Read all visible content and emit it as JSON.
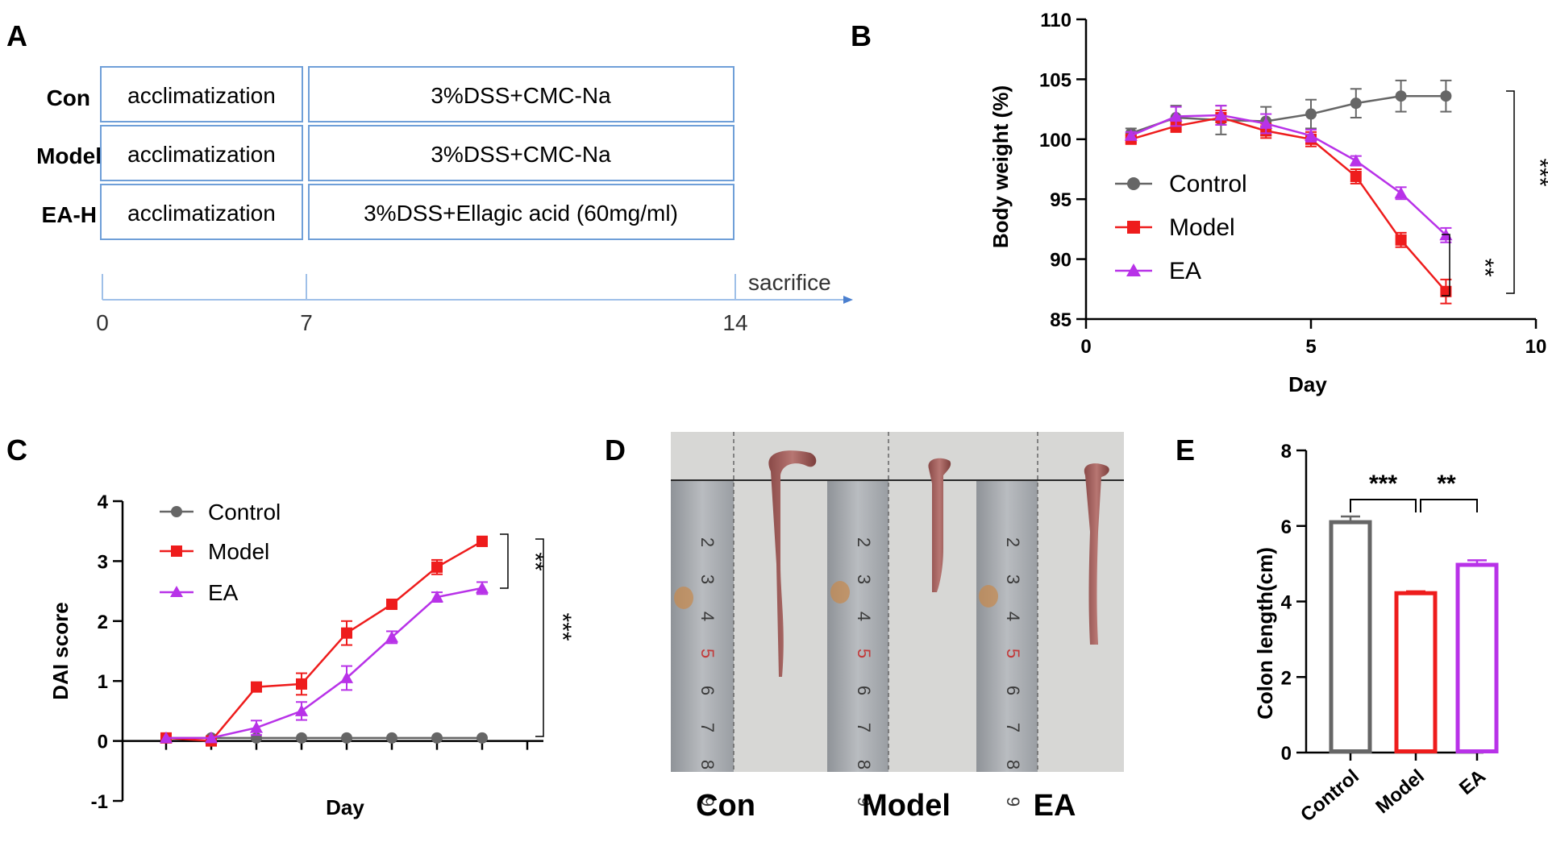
{
  "panels": {
    "A": {
      "letter": "A",
      "groups": [
        {
          "label": "Con",
          "phase1": "acclimatization",
          "phase2": "3%DSS+CMC-Na"
        },
        {
          "label": "Model",
          "phase1": "acclimatization",
          "phase2": "3%DSS+CMC-Na"
        },
        {
          "label": "EA-H",
          "phase1": "acclimatization",
          "phase2": "3%DSS+Ellagic acid (60mg/ml)"
        }
      ],
      "timeline": {
        "ticks": [
          "0",
          "7",
          "14"
        ],
        "end_label": "sacrifice"
      },
      "colors": {
        "box_border": "#6f9fd8",
        "axis": "#9fc0e8"
      }
    },
    "D": {
      "letter": "D",
      "labels": [
        "Con",
        "Model",
        "EA"
      ],
      "ruler_numbers": [
        "2",
        "3",
        "4",
        "5",
        "6",
        "7",
        "8",
        "9"
      ]
    }
  },
  "chart_data": [
    {
      "id": "B",
      "letter": "B",
      "type": "line",
      "xlabel": "Day",
      "ylabel": "Body weight (%)",
      "xlim": [
        0,
        10
      ],
      "ylim": [
        85,
        110
      ],
      "xticks": [
        0,
        5,
        10
      ],
      "yticks": [
        85,
        90,
        95,
        100,
        105,
        110
      ],
      "x": [
        1,
        2,
        3,
        4,
        5,
        6,
        7,
        8
      ],
      "series": [
        {
          "name": "Control",
          "color": "#666666",
          "marker": "circle",
          "values": [
            100.5,
            101.8,
            101.6,
            101.5,
            102.1,
            103.0,
            103.6,
            103.6
          ],
          "errors": [
            0.4,
            1.0,
            1.2,
            1.2,
            1.2,
            1.2,
            1.3,
            1.3
          ]
        },
        {
          "name": "Model",
          "color": "#ee1c1c",
          "marker": "square",
          "values": [
            100.0,
            101.1,
            101.8,
            100.7,
            100.0,
            96.9,
            91.6,
            87.3
          ],
          "errors": [
            0.3,
            0.5,
            0.6,
            0.6,
            0.6,
            0.6,
            0.6,
            1.0
          ]
        },
        {
          "name": "EA",
          "color": "#b832e8",
          "marker": "triangle",
          "values": [
            100.3,
            101.9,
            102.0,
            101.3,
            100.3,
            98.2,
            95.5,
            92.0
          ],
          "errors": [
            0.3,
            0.8,
            0.8,
            0.8,
            0.5,
            0.4,
            0.5,
            0.6
          ]
        }
      ],
      "legend": "center-left",
      "significance": [
        {
          "text": "***",
          "between": [
            "Control",
            "Model"
          ]
        },
        {
          "text": "**",
          "between": [
            "Model",
            "EA"
          ]
        }
      ]
    },
    {
      "id": "C",
      "letter": "C",
      "type": "line",
      "xlabel": "Day",
      "ylabel": "DAI score",
      "ylim": [
        -1,
        4
      ],
      "yticks": [
        -1,
        0,
        1,
        2,
        3,
        4
      ],
      "x": [
        1,
        2,
        3,
        4,
        5,
        6,
        7,
        8
      ],
      "series": [
        {
          "name": "Control",
          "color": "#666666",
          "marker": "circle",
          "values": [
            0.05,
            0.05,
            0.05,
            0.05,
            0.05,
            0.05,
            0.05,
            0.05
          ],
          "errors": [
            0,
            0,
            0,
            0,
            0,
            0,
            0,
            0
          ]
        },
        {
          "name": "Model",
          "color": "#ee1c1c",
          "marker": "square",
          "values": [
            0.05,
            0.0,
            0.9,
            0.95,
            1.8,
            2.28,
            2.9,
            3.33
          ],
          "errors": [
            0,
            0,
            0.05,
            0.18,
            0.2,
            0.05,
            0.12,
            0.08
          ]
        },
        {
          "name": "EA",
          "color": "#b832e8",
          "marker": "triangle",
          "values": [
            0.05,
            0.05,
            0.22,
            0.5,
            1.05,
            1.73,
            2.4,
            2.55
          ],
          "errors": [
            0,
            0,
            0.12,
            0.15,
            0.2,
            0.1,
            0.08,
            0.1
          ]
        }
      ],
      "legend": "top-left",
      "significance": [
        {
          "text": "**",
          "between": [
            "Model",
            "EA"
          ]
        },
        {
          "text": "***",
          "between": [
            "Model",
            "Control"
          ]
        }
      ]
    },
    {
      "id": "E",
      "letter": "E",
      "type": "bar",
      "ylabel": "Colon length(cm)",
      "ylim": [
        0,
        8
      ],
      "yticks": [
        0,
        2,
        4,
        6,
        8
      ],
      "categories": [
        "Control",
        "Model",
        "EA"
      ],
      "values": [
        6.1,
        4.22,
        4.97
      ],
      "errors": [
        0.15,
        0.05,
        0.12
      ],
      "colors": [
        "#666666",
        "#ee1c1c",
        "#b832e8"
      ],
      "significance": [
        {
          "text": "***",
          "between": [
            "Control",
            "Model"
          ]
        },
        {
          "text": "**",
          "between": [
            "Model",
            "EA"
          ]
        }
      ]
    }
  ]
}
